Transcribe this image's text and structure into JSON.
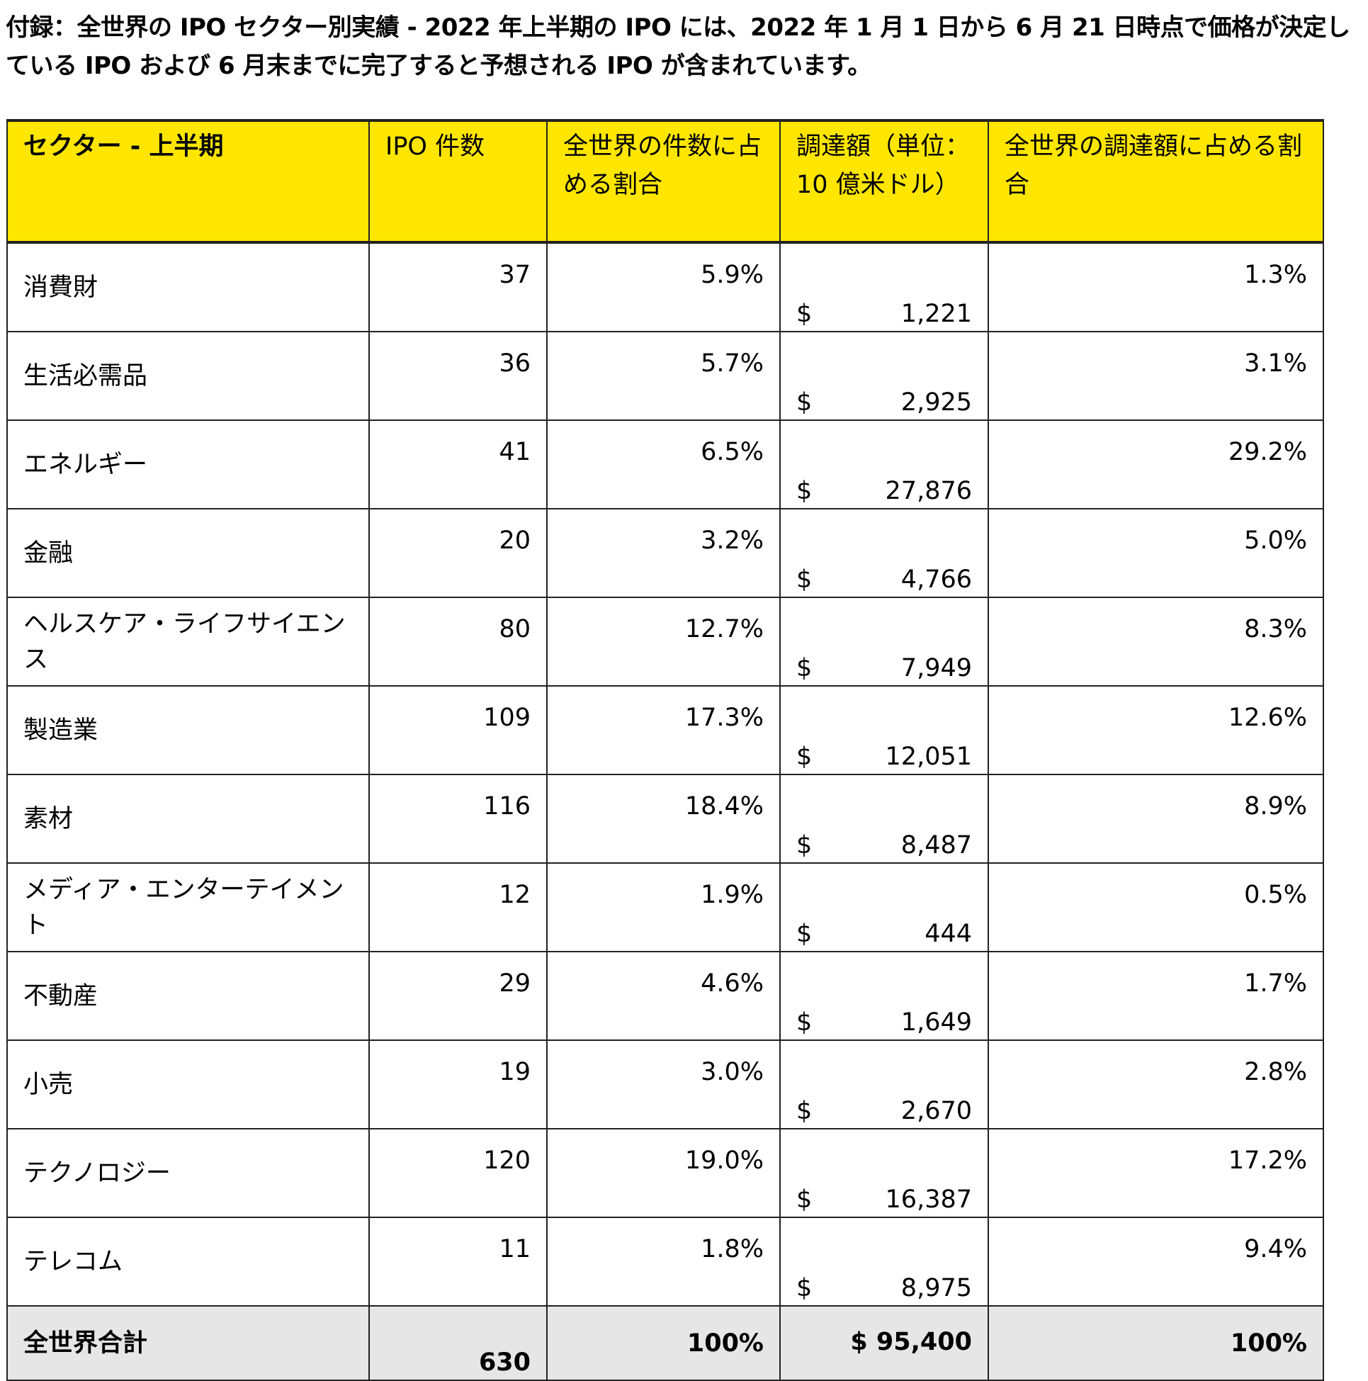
{
  "title": "付録：全世界の IPO セクター別実績 - 2022 年上半期の IPO には、2022 年 1 月 1 日から 6 月 21 日時点で価格が決定している IPO および 6 月末までに完了すると予想される IPO が含まれています。",
  "table": {
    "headers": [
      "セクター - 上半期",
      "IPO 件数",
      "全世界の件数に占める割合",
      "調達額（単位：10 億米ドル）",
      "全世界の調達額に占める割合"
    ],
    "currency_symbol": "$",
    "header_bg": "#ffe600",
    "rows": [
      {
        "sector": "消費財",
        "count": "37",
        "count_share": "5.9%",
        "proceeds": "1,221",
        "proceeds_share": "1.3%"
      },
      {
        "sector": "生活必需品",
        "count": "36",
        "count_share": "5.7%",
        "proceeds": "2,925",
        "proceeds_share": "3.1%"
      },
      {
        "sector": "エネルギー",
        "count": "41",
        "count_share": "6.5%",
        "proceeds": "27,876",
        "proceeds_share": "29.2%"
      },
      {
        "sector": "金融",
        "count": "20",
        "count_share": "3.2%",
        "proceeds": "4,766",
        "proceeds_share": "5.0%"
      },
      {
        "sector": "ヘルスケア・ライフサイエンス",
        "count": "80",
        "count_share": "12.7%",
        "proceeds": "7,949",
        "proceeds_share": "8.3%"
      },
      {
        "sector": "製造業",
        "count": "109",
        "count_share": "17.3%",
        "proceeds": "12,051",
        "proceeds_share": "12.6%"
      },
      {
        "sector": "素材",
        "count": "116",
        "count_share": "18.4%",
        "proceeds": "8,487",
        "proceeds_share": "8.9%"
      },
      {
        "sector": "メディア・エンターテイメント",
        "count": "12",
        "count_share": "1.9%",
        "proceeds": "444",
        "proceeds_share": "0.5%"
      },
      {
        "sector": "不動産",
        "count": "29",
        "count_share": "4.6%",
        "proceeds": "1,649",
        "proceeds_share": "1.7%"
      },
      {
        "sector": "小売",
        "count": "19",
        "count_share": "3.0%",
        "proceeds": "2,670",
        "proceeds_share": "2.8%"
      },
      {
        "sector": "テクノロジー",
        "count": "120",
        "count_share": "19.0%",
        "proceeds": "16,387",
        "proceeds_share": "17.2%"
      },
      {
        "sector": "テレコム",
        "count": "11",
        "count_share": "1.8%",
        "proceeds": "8,975",
        "proceeds_share": "9.4%"
      }
    ],
    "total": {
      "sector": "全世界合計",
      "count": "630",
      "count_share": "100%",
      "proceeds": "$ 95,400",
      "proceeds_share": "100%"
    }
  }
}
